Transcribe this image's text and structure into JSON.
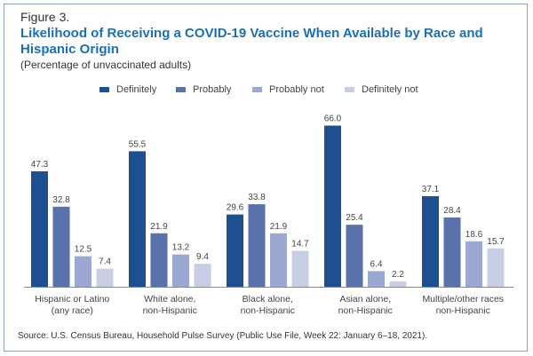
{
  "figure_label": "Figure 3.",
  "title": "Likelihood of Receiving a COVID-19 Vaccine When Available by Race and Hispanic Origin",
  "subtitle": "(Percentage of unvaccinated adults)",
  "source": "Source: U.S. Census Bureau, Household Pulse Survey (Public Use File, Week 22: January 6–18, 2021).",
  "chart_data": {
    "type": "bar",
    "title": "Likelihood of Receiving a COVID-19 Vaccine When Available by Race and Hispanic Origin",
    "subtitle": "(Percentage of unvaccinated adults)",
    "xlabel": "",
    "ylabel": "",
    "ylim": [
      0,
      70
    ],
    "grid": false,
    "legend_position": "top-center",
    "categories": [
      [
        "Hispanic or Latino",
        "(any race)"
      ],
      [
        "White alone,",
        "non-Hispanic"
      ],
      [
        "Black alone,",
        "non-Hispanic"
      ],
      [
        "Asian alone,",
        "non-Hispanic"
      ],
      [
        "Multiple/other races",
        "non-Hispanic"
      ]
    ],
    "series": [
      {
        "name": "Definitely",
        "color": "#1d4f91",
        "values": [
          47.3,
          55.5,
          29.6,
          66.0,
          37.1
        ]
      },
      {
        "name": "Probably",
        "color": "#5a72ab",
        "values": [
          32.8,
          21.9,
          33.8,
          25.4,
          28.4
        ]
      },
      {
        "name": "Probably not",
        "color": "#9aa8d2",
        "values": [
          12.5,
          13.2,
          21.9,
          6.4,
          18.6
        ]
      },
      {
        "name": "Definitely not",
        "color": "#c8cfe5",
        "values": [
          7.4,
          9.4,
          14.7,
          2.2,
          15.7
        ]
      }
    ],
    "value_labels": [
      [
        "47.3",
        "55.5",
        "29.6",
        "66.0",
        "37.1"
      ],
      [
        "32.8",
        "21.9",
        "33.8",
        "25.4",
        "28.4"
      ],
      [
        "12.5",
        "13.2",
        "21.9",
        "6.4",
        "18.6"
      ],
      [
        "7.4",
        "9.4",
        "14.7",
        "2.2",
        "15.7"
      ]
    ]
  }
}
